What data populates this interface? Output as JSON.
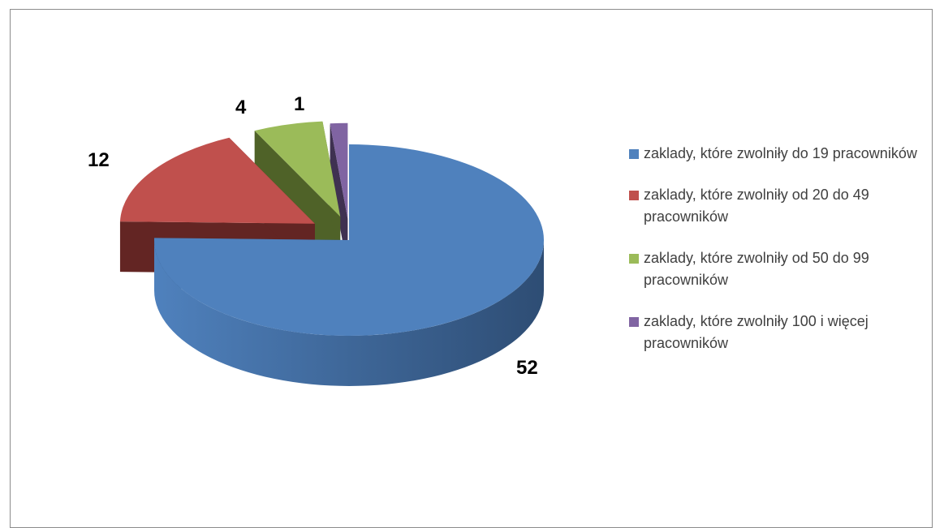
{
  "chart_data": {
    "type": "pie",
    "style": "3d-exploded",
    "slices": [
      {
        "label": "zaklady, które zwolniły do 19 pracowników",
        "value": 52,
        "color": "#4f81bd",
        "side_color": "#2e4d74"
      },
      {
        "label": "zaklady, które zwolniły od 20 do 49 pracowników",
        "value": 12,
        "color": "#c0504d",
        "side_color": "#632523"
      },
      {
        "label": "zaklady, które zwolniły od 50 do 99 pracowników",
        "value": 4,
        "color": "#9bbb59",
        "side_color": "#4f6228"
      },
      {
        "label": "zaklady, które zwolniły 100 i więcej pracowników",
        "value": 1,
        "color": "#8064a2",
        "side_color": "#3f3151"
      }
    ],
    "data_labels_shown": true,
    "legend_position": "right",
    "title": ""
  },
  "legend": {
    "items": [
      {
        "text": "zaklady, które zwolniły do 19 pracowników",
        "color": "#4f81bd"
      },
      {
        "text": "zaklady, które zwolniły od 20 do 49 pracowników",
        "color": "#c0504d"
      },
      {
        "text": "zaklady, które zwolniły od 50 do 99 pracowników",
        "color": "#9bbb59"
      },
      {
        "text": "zaklady, które zwolniły 100 i więcej pracowników",
        "color": "#8064a2"
      }
    ]
  },
  "labels": {
    "v0": "52",
    "v1": "12",
    "v2": "4",
    "v3": "1"
  }
}
